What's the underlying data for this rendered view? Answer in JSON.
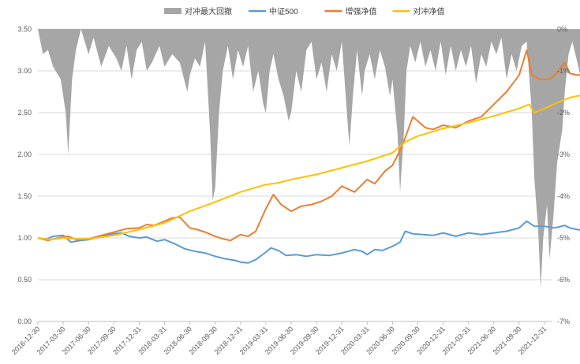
{
  "chart_data": {
    "type": "line",
    "legend": [
      {
        "label": "对冲最大回撤",
        "color": "#a6a6a6",
        "kind": "area"
      },
      {
        "label": "中证500",
        "color": "#5b9bd5",
        "kind": "line"
      },
      {
        "label": "增强净值",
        "color": "#ed7d31",
        "kind": "line"
      },
      {
        "label": "对冲净值",
        "color": "#ffc000",
        "kind": "line"
      }
    ],
    "legend_position": "top",
    "y_left": {
      "min": 0,
      "max": 3.5,
      "ticks": [
        "0.00",
        "0.50",
        "1.00",
        "1.50",
        "2.00",
        "2.50",
        "3.00",
        "3.50"
      ]
    },
    "y_right": {
      "min": -7,
      "max": 0,
      "ticks": [
        "0%",
        "-1%",
        "-2%",
        "-3%",
        "-4%",
        "-5%",
        "-6%",
        "-7%"
      ]
    },
    "x_ticks": [
      "2016-12-30",
      "2017-03-30",
      "2017-06-30",
      "2017-09-30",
      "2017-12-31",
      "2018-03-31",
      "2018-06-30",
      "2018-09-30",
      "2018-12-31",
      "2019-03-31",
      "2019-06-30",
      "2019-09-30",
      "2019-12-31",
      "2020-03-31",
      "2020-06-30",
      "2020-09-30",
      "2020-12-31",
      "2021-03-31",
      "2021-06-30",
      "2021-09-30",
      "2021-12-31"
    ],
    "grid": "horizontal",
    "series": [
      {
        "name": "中证500",
        "color": "#5b9bd5",
        "axis": "left",
        "points": [
          [
            0,
            1.0
          ],
          [
            0.3,
            0.98
          ],
          [
            0.6,
            1.02
          ],
          [
            1.0,
            1.03
          ],
          [
            1.3,
            0.95
          ],
          [
            1.7,
            0.97
          ],
          [
            2.0,
            0.98
          ],
          [
            2.5,
            1.02
          ],
          [
            3.0,
            1.05
          ],
          [
            3.3,
            1.06
          ],
          [
            3.6,
            1.02
          ],
          [
            4.0,
            1.0
          ],
          [
            4.3,
            1.01
          ],
          [
            4.7,
            0.96
          ],
          [
            5.0,
            0.98
          ],
          [
            5.4,
            0.93
          ],
          [
            5.8,
            0.87
          ],
          [
            6.2,
            0.84
          ],
          [
            6.6,
            0.82
          ],
          [
            7.0,
            0.78
          ],
          [
            7.4,
            0.75
          ],
          [
            7.8,
            0.73
          ],
          [
            8.0,
            0.71
          ],
          [
            8.3,
            0.7
          ],
          [
            8.6,
            0.74
          ],
          [
            9.0,
            0.83
          ],
          [
            9.2,
            0.88
          ],
          [
            9.5,
            0.85
          ],
          [
            9.8,
            0.79
          ],
          [
            10.2,
            0.8
          ],
          [
            10.6,
            0.78
          ],
          [
            11.0,
            0.8
          ],
          [
            11.5,
            0.79
          ],
          [
            12.0,
            0.82
          ],
          [
            12.5,
            0.86
          ],
          [
            12.8,
            0.84
          ],
          [
            13.0,
            0.8
          ],
          [
            13.3,
            0.86
          ],
          [
            13.6,
            0.85
          ],
          [
            14.0,
            0.9
          ],
          [
            14.3,
            0.95
          ],
          [
            14.5,
            1.08
          ],
          [
            14.8,
            1.05
          ],
          [
            15.2,
            1.04
          ],
          [
            15.6,
            1.03
          ],
          [
            16.0,
            1.06
          ],
          [
            16.5,
            1.02
          ],
          [
            17.0,
            1.06
          ],
          [
            17.5,
            1.04
          ],
          [
            18.0,
            1.06
          ],
          [
            18.5,
            1.08
          ],
          [
            19.0,
            1.12
          ],
          [
            19.3,
            1.2
          ],
          [
            19.6,
            1.14
          ],
          [
            20.0,
            1.14
          ],
          [
            20.4,
            1.12
          ],
          [
            20.8,
            1.15
          ],
          [
            21.0,
            1.12
          ],
          [
            21.3,
            1.1
          ],
          [
            21.6,
            1.09
          ]
        ]
      },
      {
        "name": "增强净值",
        "color": "#ed7d31",
        "axis": "left",
        "points": [
          [
            0,
            1.0
          ],
          [
            0.4,
            0.97
          ],
          [
            0.8,
            1.0
          ],
          [
            1.2,
            1.02
          ],
          [
            1.5,
            0.98
          ],
          [
            2.0,
            0.99
          ],
          [
            2.5,
            1.03
          ],
          [
            3.0,
            1.07
          ],
          [
            3.5,
            1.11
          ],
          [
            4.0,
            1.12
          ],
          [
            4.3,
            1.16
          ],
          [
            4.6,
            1.15
          ],
          [
            5.0,
            1.2
          ],
          [
            5.3,
            1.24
          ],
          [
            5.6,
            1.25
          ],
          [
            6.0,
            1.12
          ],
          [
            6.3,
            1.1
          ],
          [
            6.6,
            1.07
          ],
          [
            7.0,
            1.02
          ],
          [
            7.3,
            0.99
          ],
          [
            7.6,
            0.97
          ],
          [
            8.0,
            1.04
          ],
          [
            8.3,
            1.02
          ],
          [
            8.6,
            1.08
          ],
          [
            9.0,
            1.35
          ],
          [
            9.3,
            1.52
          ],
          [
            9.6,
            1.4
          ],
          [
            10.0,
            1.32
          ],
          [
            10.4,
            1.38
          ],
          [
            10.8,
            1.4
          ],
          [
            11.2,
            1.44
          ],
          [
            11.6,
            1.5
          ],
          [
            12.0,
            1.62
          ],
          [
            12.5,
            1.55
          ],
          [
            13.0,
            1.7
          ],
          [
            13.3,
            1.65
          ],
          [
            13.7,
            1.8
          ],
          [
            14.0,
            1.87
          ],
          [
            14.3,
            2.05
          ],
          [
            14.5,
            2.2
          ],
          [
            14.8,
            2.45
          ],
          [
            15.0,
            2.4
          ],
          [
            15.3,
            2.32
          ],
          [
            15.6,
            2.3
          ],
          [
            16.0,
            2.35
          ],
          [
            16.5,
            2.32
          ],
          [
            17.0,
            2.4
          ],
          [
            17.5,
            2.45
          ],
          [
            18.0,
            2.6
          ],
          [
            18.5,
            2.75
          ],
          [
            19.0,
            2.95
          ],
          [
            19.3,
            3.25
          ],
          [
            19.5,
            2.95
          ],
          [
            19.8,
            2.9
          ],
          [
            20.2,
            2.9
          ],
          [
            20.5,
            2.98
          ],
          [
            20.8,
            3.1
          ],
          [
            21.0,
            2.97
          ],
          [
            21.3,
            2.95
          ],
          [
            21.6,
            2.95
          ]
        ]
      },
      {
        "name": "对冲净值",
        "color": "#ffc000",
        "axis": "left",
        "points": [
          [
            0,
            1.0
          ],
          [
            0.5,
            0.98
          ],
          [
            1.0,
            1.0
          ],
          [
            1.5,
            0.99
          ],
          [
            2.0,
            0.99
          ],
          [
            3.0,
            1.03
          ],
          [
            4.0,
            1.1
          ],
          [
            5.0,
            1.18
          ],
          [
            6.0,
            1.32
          ],
          [
            7.0,
            1.43
          ],
          [
            8.0,
            1.55
          ],
          [
            9.0,
            1.64
          ],
          [
            9.5,
            1.66
          ],
          [
            10.0,
            1.7
          ],
          [
            11.0,
            1.76
          ],
          [
            12.0,
            1.84
          ],
          [
            13.0,
            1.92
          ],
          [
            14.0,
            2.02
          ],
          [
            14.5,
            2.15
          ],
          [
            15.0,
            2.22
          ],
          [
            16.0,
            2.31
          ],
          [
            17.0,
            2.38
          ],
          [
            18.0,
            2.46
          ],
          [
            19.0,
            2.55
          ],
          [
            19.4,
            2.6
          ],
          [
            19.6,
            2.5
          ],
          [
            20.0,
            2.55
          ],
          [
            20.5,
            2.62
          ],
          [
            21.0,
            2.68
          ],
          [
            21.3,
            2.7
          ],
          [
            21.6,
            2.71
          ]
        ]
      },
      {
        "name": "对冲最大回撤",
        "color": "#a6a6a6",
        "axis": "right",
        "points": [
          [
            0,
            0
          ],
          [
            0.2,
            -0.6
          ],
          [
            0.4,
            -0.5
          ],
          [
            0.6,
            -0.9
          ],
          [
            0.9,
            -1.2
          ],
          [
            1.1,
            -2.0
          ],
          [
            1.2,
            -3.0
          ],
          [
            1.35,
            -1.2
          ],
          [
            1.5,
            -0.5
          ],
          [
            1.7,
            0
          ],
          [
            2.0,
            -0.6
          ],
          [
            2.2,
            -0.2
          ],
          [
            2.5,
            -0.9
          ],
          [
            2.8,
            -0.4
          ],
          [
            3.1,
            -0.7
          ],
          [
            3.3,
            -1.0
          ],
          [
            3.5,
            -0.4
          ],
          [
            3.7,
            -1.2
          ],
          [
            3.9,
            -0.5
          ],
          [
            4.1,
            -0.3
          ],
          [
            4.3,
            -1.0
          ],
          [
            4.5,
            -0.8
          ],
          [
            4.8,
            -0.4
          ],
          [
            5.0,
            -0.9
          ],
          [
            5.3,
            -0.6
          ],
          [
            5.6,
            -0.8
          ],
          [
            5.9,
            -1.5
          ],
          [
            6.0,
            -1.1
          ],
          [
            6.2,
            -0.7
          ],
          [
            6.4,
            -0.9
          ],
          [
            6.6,
            -0.3
          ],
          [
            6.8,
            -2.5
          ],
          [
            6.9,
            -4.1
          ],
          [
            7.0,
            -3.8
          ],
          [
            7.15,
            -2.0
          ],
          [
            7.3,
            -1.0
          ],
          [
            7.5,
            -0.4
          ],
          [
            7.7,
            -1.2
          ],
          [
            7.9,
            -0.5
          ],
          [
            8.1,
            -0.9
          ],
          [
            8.3,
            -0.4
          ],
          [
            8.5,
            -1.5
          ],
          [
            8.7,
            -1.0
          ],
          [
            8.9,
            -1.8
          ],
          [
            9.0,
            -2.0
          ],
          [
            9.15,
            -1.0
          ],
          [
            9.3,
            -0.6
          ],
          [
            9.5,
            -1.2
          ],
          [
            9.7,
            -1.6
          ],
          [
            9.9,
            -2.2
          ],
          [
            10.0,
            -2.0
          ],
          [
            10.2,
            -1.0
          ],
          [
            10.4,
            -1.5
          ],
          [
            10.6,
            -0.5
          ],
          [
            10.8,
            -0.3
          ],
          [
            11.0,
            -1.2
          ],
          [
            11.2,
            -0.8
          ],
          [
            11.4,
            -1.5
          ],
          [
            11.6,
            -0.6
          ],
          [
            11.8,
            -1.0
          ],
          [
            12.0,
            -0.3
          ],
          [
            12.2,
            -2.0
          ],
          [
            12.3,
            -2.8
          ],
          [
            12.45,
            -1.5
          ],
          [
            12.6,
            -0.5
          ],
          [
            12.8,
            -1.6
          ],
          [
            12.9,
            -1.0
          ],
          [
            13.1,
            -0.6
          ],
          [
            13.3,
            -1.2
          ],
          [
            13.5,
            -0.5
          ],
          [
            13.7,
            -0.9
          ],
          [
            13.9,
            -1.6
          ],
          [
            14.0,
            -1.2
          ],
          [
            14.2,
            -2.5
          ],
          [
            14.3,
            -3.9
          ],
          [
            14.45,
            -2.5
          ],
          [
            14.55,
            -1.0
          ],
          [
            14.7,
            -0.4
          ],
          [
            14.9,
            -0.8
          ],
          [
            15.1,
            -0.3
          ],
          [
            15.3,
            -0.9
          ],
          [
            15.5,
            -0.5
          ],
          [
            15.7,
            -1.0
          ],
          [
            15.9,
            -0.3
          ],
          [
            16.1,
            -1.1
          ],
          [
            16.3,
            -0.4
          ],
          [
            16.5,
            -1.0
          ],
          [
            16.7,
            -0.5
          ],
          [
            16.9,
            -0.9
          ],
          [
            17.1,
            -0.4
          ],
          [
            17.3,
            -1.3
          ],
          [
            17.5,
            -0.6
          ],
          [
            17.7,
            -0.9
          ],
          [
            17.9,
            -0.3
          ],
          [
            18.1,
            -0.6
          ],
          [
            18.3,
            -0.2
          ],
          [
            18.5,
            -1.2
          ],
          [
            18.7,
            -0.6
          ],
          [
            18.9,
            -1.0
          ],
          [
            19.1,
            -0.4
          ],
          [
            19.3,
            -0.3
          ],
          [
            19.5,
            -2.0
          ],
          [
            19.6,
            -3.6
          ],
          [
            19.75,
            -4.8
          ],
          [
            19.85,
            -6.2
          ],
          [
            19.95,
            -5.0
          ],
          [
            20.1,
            -4.2
          ],
          [
            20.2,
            -5.5
          ],
          [
            20.35,
            -4.5
          ],
          [
            20.5,
            -3.2
          ],
          [
            20.7,
            -2.4
          ],
          [
            20.8,
            -1.5
          ],
          [
            20.95,
            -0.6
          ],
          [
            21.1,
            -0.3
          ],
          [
            21.3,
            -0.8
          ],
          [
            21.45,
            -1.2
          ],
          [
            21.6,
            -0.4
          ]
        ]
      }
    ]
  }
}
